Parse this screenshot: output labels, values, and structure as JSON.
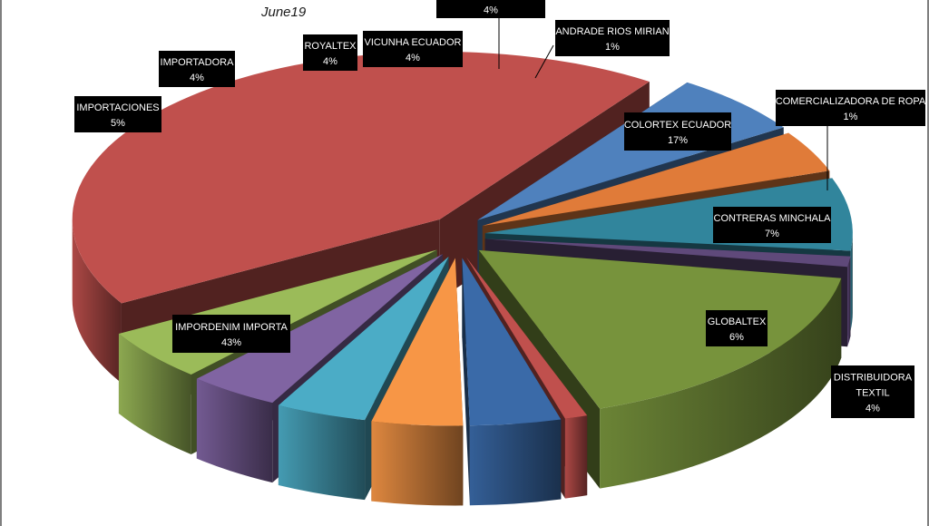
{
  "chart_data": {
    "type": "pie",
    "style": "3d-exploded",
    "title": "June19",
    "legend": "none",
    "slices": [
      {
        "label": "IMPORDENIM IMPORTA",
        "percent_label": "43%",
        "value": 43,
        "color": "#c0504d"
      },
      {
        "label": "GLOBALTEX",
        "percent_label": "6%",
        "value": 6,
        "color": "#4f81bd"
      },
      {
        "label": "DISTRIBUIDORA TEXTIL",
        "percent_label": "4%",
        "value": 4,
        "color": "#e07b39"
      },
      {
        "label": "CONTRERAS MINCHALA",
        "percent_label": "7%",
        "value": 7,
        "color": "#31859c"
      },
      {
        "label": "COMERCIALIZADORA DE ROPA",
        "percent_label": "1%",
        "value": 1,
        "color": "#5f497a"
      },
      {
        "label": "COLORTEX ECUADOR",
        "percent_label": "17%",
        "value": 17,
        "color": "#77933c"
      },
      {
        "label": "ANDRADE RIOS MIRIAN",
        "percent_label": "1%",
        "value": 1,
        "color": "#c0504d"
      },
      {
        "label": "",
        "percent_label": "4%",
        "value": 4,
        "color": "#3a6aa8"
      },
      {
        "label": "VICUNHA ECUADOR",
        "percent_label": "4%",
        "value": 4,
        "color": "#f79646"
      },
      {
        "label": "ROYALTEX",
        "percent_label": "4%",
        "value": 4,
        "color": "#4bacc6"
      },
      {
        "label": "IMPORTADORA",
        "percent_label": "4%",
        "value": 4,
        "color": "#8064a2"
      },
      {
        "label": "IMPORTACIONES",
        "percent_label": "5%",
        "value": 5,
        "color": "#9bbb59"
      }
    ]
  }
}
